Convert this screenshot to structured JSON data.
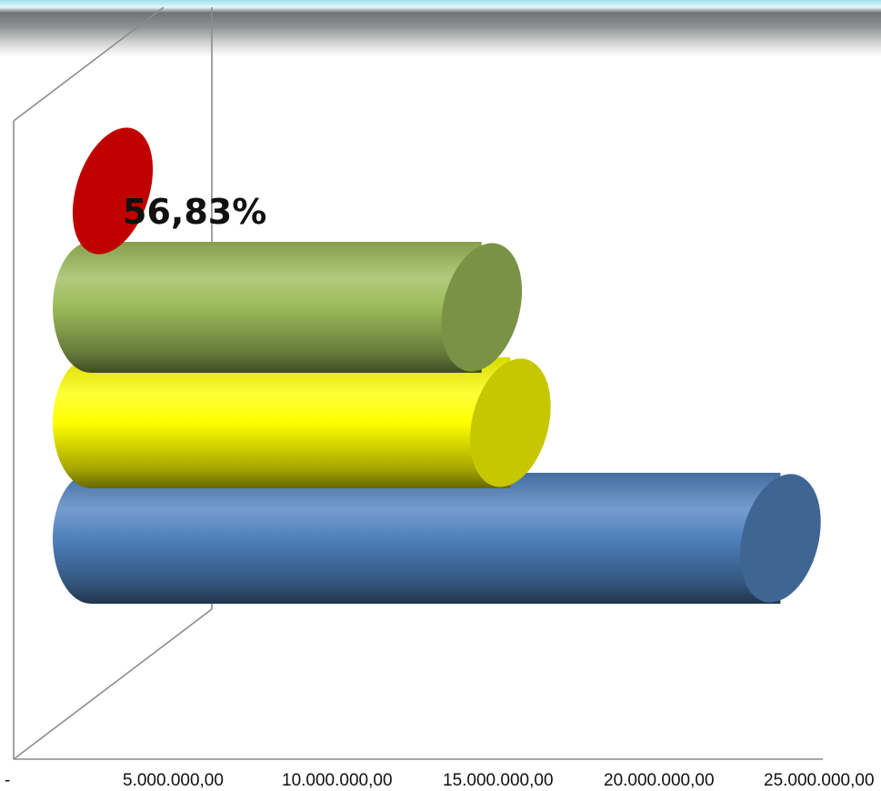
{
  "chart_data": {
    "type": "bar",
    "orientation": "horizontal",
    "style": "3d-cylinder",
    "title": "",
    "xlabel": "",
    "ylabel": "",
    "xlim": [
      0,
      25000000
    ],
    "x_ticks": [
      0,
      5000000,
      10000000,
      15000000,
      20000000,
      25000000
    ],
    "x_tick_labels": [
      "-",
      "5.000.000,00",
      "10.000.000,00",
      "15.000.000,00",
      "20.000.000,00",
      "25.000.000,00"
    ],
    "bars": [
      {
        "value": 24000000,
        "color": "#4f81bd"
      },
      {
        "value": 14600000,
        "color": "#ffff00"
      },
      {
        "value": 13600000,
        "color": "#9bbb59"
      },
      {
        "value": 0,
        "color": "#c00000"
      }
    ],
    "annotations": [
      {
        "text": "56,83%"
      }
    ],
    "grid": false
  }
}
